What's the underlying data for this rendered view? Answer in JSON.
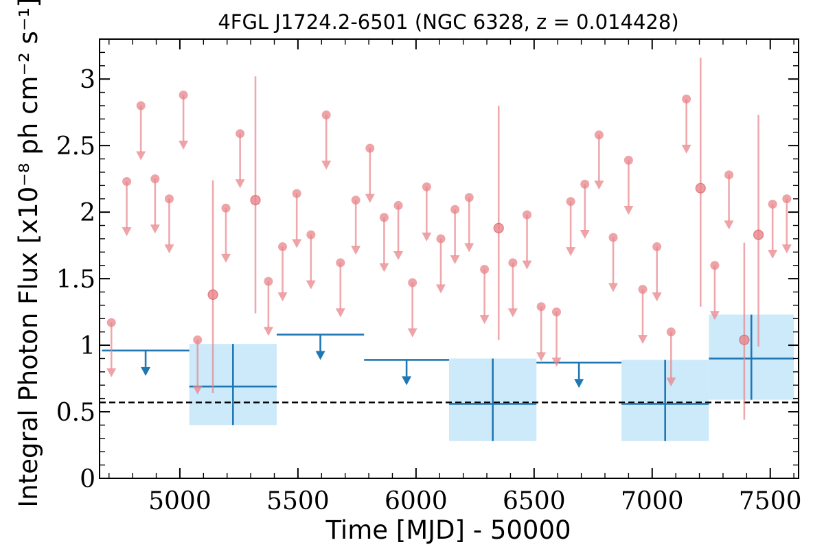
{
  "chart_data": {
    "type": "scatter",
    "title": "4FGL J1724.2-6501 (NGC 6328, z = 0.014428)",
    "xlabel": "Time [MJD] - 50000",
    "ylabel": "Integral Photon Flux [x10⁻⁸ ph cm⁻² s⁻¹]",
    "xlim": [
      4660,
      7620
    ],
    "ylim": [
      0,
      3.3
    ],
    "xticks": [
      "5000",
      "5500",
      "6000",
      "6500",
      "7000",
      "7500"
    ],
    "yticks": [
      "0",
      "0.5",
      "1",
      "1.5",
      "2",
      "2.5",
      "3"
    ],
    "xtick_values": [
      5000,
      5500,
      6000,
      6500,
      7000,
      7500
    ],
    "ytick_values": [
      0,
      0.5,
      1,
      1.5,
      2,
      2.5,
      3
    ],
    "grid": false,
    "colors": {
      "fine": "#e8848a",
      "coarse": "#1f77b4",
      "coarse_fill": "#cdeafb",
      "mean_line": "#000000"
    },
    "mean_flux": 0.57,
    "series": [
      {
        "upper_limits": [
          [
            4710,
            1.17
          ],
          [
            4775,
            2.23
          ],
          [
            4835,
            2.8
          ],
          [
            4895,
            2.25
          ],
          [
            4955,
            2.1
          ],
          [
            5015,
            2.88
          ],
          [
            5075,
            1.04
          ],
          [
            5195,
            2.03
          ],
          [
            5255,
            2.59
          ],
          [
            5375,
            1.48
          ],
          [
            5435,
            1.74
          ],
          [
            5495,
            2.14
          ],
          [
            5555,
            1.83
          ],
          [
            5620,
            2.73
          ],
          [
            5680,
            1.62
          ],
          [
            5745,
            2.09
          ],
          [
            5805,
            2.48
          ],
          [
            5865,
            1.96
          ],
          [
            5925,
            2.05
          ],
          [
            5985,
            1.47
          ],
          [
            6045,
            2.19
          ],
          [
            6105,
            1.8
          ],
          [
            6165,
            2.02
          ],
          [
            6225,
            2.11
          ],
          [
            6290,
            1.57
          ],
          [
            6410,
            1.62
          ],
          [
            6470,
            1.98
          ],
          [
            6530,
            1.29
          ],
          [
            6595,
            1.25
          ],
          [
            6655,
            2.08
          ],
          [
            6715,
            2.21
          ],
          [
            6775,
            2.58
          ],
          [
            6835,
            1.81
          ],
          [
            6900,
            2.39
          ],
          [
            6960,
            1.42
          ],
          [
            7020,
            1.74
          ],
          [
            7080,
            1.1
          ],
          [
            7145,
            2.85
          ],
          [
            7265,
            1.6
          ],
          [
            7325,
            2.28
          ],
          [
            7510,
            2.06
          ],
          [
            7570,
            2.1
          ]
        ],
        "detections": [
          {
            "x": 5140,
            "y": 1.38,
            "ylo": 0.64,
            "yhi": 2.24
          },
          {
            "x": 5320,
            "y": 2.09,
            "ylo": 1.24,
            "yhi": 3.02
          },
          {
            "x": 6350,
            "y": 1.88,
            "ylo": 1.04,
            "yhi": 2.8
          },
          {
            "x": 7205,
            "y": 2.18,
            "ylo": 1.29,
            "yhi": 3.16
          },
          {
            "x": 7390,
            "y": 1.04,
            "ylo": 0.44,
            "yhi": 1.77
          },
          {
            "x": 7450,
            "y": 1.83,
            "ylo": 0.99,
            "yhi": 2.73
          }
        ]
      },
      {
        "upper_limits": [
          {
            "x0": 4670,
            "x1": 5040,
            "y": 0.96
          },
          {
            "x0": 5410,
            "x1": 5780,
            "y": 1.08
          },
          {
            "x0": 5780,
            "x1": 6140,
            "y": 0.89
          },
          {
            "x0": 6510,
            "x1": 6870,
            "y": 0.87
          }
        ],
        "detections": [
          {
            "x0": 5040,
            "x1": 5410,
            "y": 0.69,
            "ylo": 0.4,
            "yhi": 1.01
          },
          {
            "x0": 6140,
            "x1": 6510,
            "y": 0.56,
            "ylo": 0.28,
            "yhi": 0.9
          },
          {
            "x0": 6870,
            "x1": 7240,
            "y": 0.56,
            "ylo": 0.28,
            "yhi": 0.89
          },
          {
            "x0": 7240,
            "x1": 7600,
            "y": 0.9,
            "ylo": 0.59,
            "yhi": 1.23
          }
        ]
      }
    ]
  }
}
